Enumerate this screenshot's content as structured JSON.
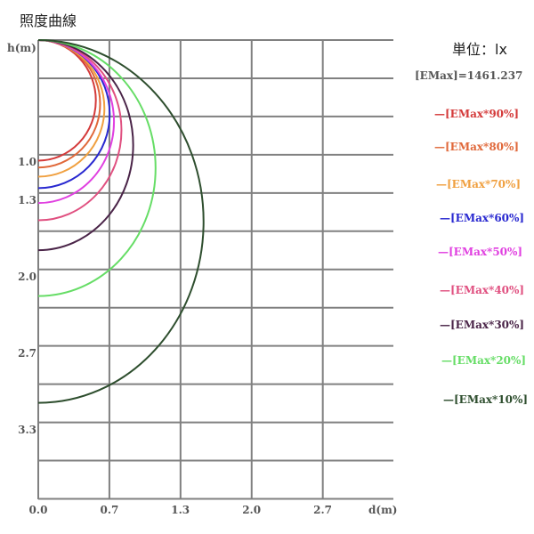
{
  "title": "照度曲線",
  "unit_label": "単位：lx",
  "emax_label": "[EMax]=1461.237",
  "chart_data": {
    "type": "line",
    "title": "照度曲線",
    "xlabel": "d(m)",
    "ylabel": "h(m)",
    "xlim": [
      0,
      3.33
    ],
    "ylim": [
      0,
      4.0
    ],
    "y_inverted": true,
    "grid": true,
    "x_ticks": [
      "0.0",
      "0.7",
      "1.3",
      "2.0",
      "2.7"
    ],
    "x_tick_values": [
      0,
      0.667,
      1.333,
      2.0,
      2.667
    ],
    "y_ticks": [
      "1.0",
      "1.3",
      "2.0",
      "2.7",
      "3.3"
    ],
    "y_tick_values": [
      1.0,
      1.333,
      2.0,
      2.667,
      3.333
    ],
    "grid_step_x": 0.667,
    "grid_step_y": 0.333,
    "legend_placement": "right",
    "series": [
      {
        "name": "[EMax*90%]",
        "color": "#d43a3a",
        "depth_m": 1.05,
        "max_spread_m": 0.54
      },
      {
        "name": "[EMax*80%]",
        "color": "#e0683a",
        "depth_m": 1.11,
        "max_spread_m": 0.58
      },
      {
        "name": "[EMax*70%]",
        "color": "#f0a040",
        "depth_m": 1.19,
        "max_spread_m": 0.62
      },
      {
        "name": "[EMax*60%]",
        "color": "#2828d0",
        "depth_m": 1.29,
        "max_spread_m": 0.67
      },
      {
        "name": "[EMax*50%]",
        "color": "#e040e0",
        "depth_m": 1.42,
        "max_spread_m": 0.71
      },
      {
        "name": "[EMax*40%]",
        "color": "#e05080",
        "depth_m": 1.57,
        "max_spread_m": 0.78
      },
      {
        "name": "[EMax*30%]",
        "color": "#4a2448",
        "depth_m": 1.83,
        "max_spread_m": 0.89
      },
      {
        "name": "[EMax*20%]",
        "color": "#66dd66",
        "depth_m": 2.23,
        "max_spread_m": 1.1
      },
      {
        "name": "[EMax*10%]",
        "color": "#2e4e2e",
        "depth_m": 3.16,
        "max_spread_m": 1.55
      }
    ]
  }
}
